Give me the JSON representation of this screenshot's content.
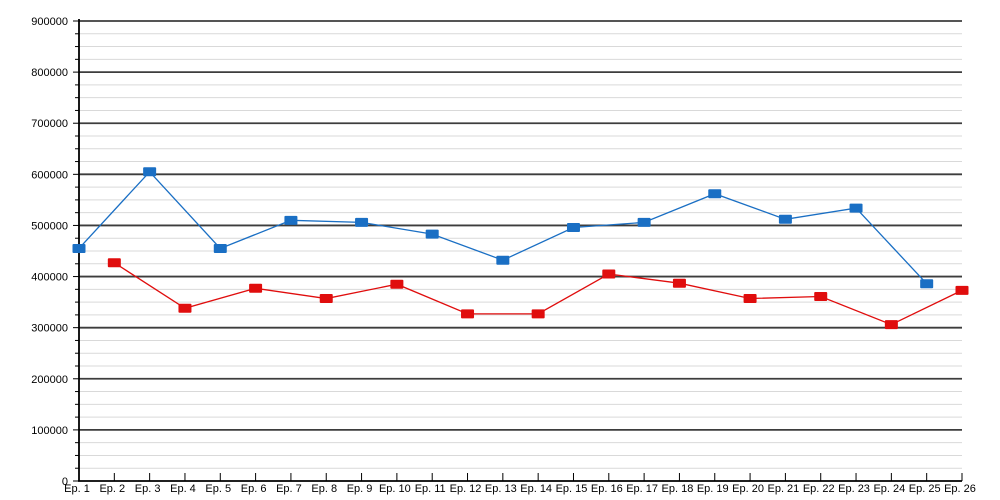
{
  "page": {
    "background_color": "#ffffff"
  },
  "chart_data": {
    "type": "line",
    "title": "",
    "legend": "none",
    "grid": {
      "major_color": "#3d3d3d",
      "minor_color": "#d9d9d9",
      "axis_color": "#000000",
      "major_on": true,
      "minor_on": true
    },
    "x_axis": {
      "label": "",
      "tick_labels": [
        "Ep. 1",
        "Ep. 2",
        "Ep. 3",
        "Ep. 4",
        "Ep. 5",
        "Ep. 6",
        "Ep. 7",
        "Ep. 8",
        "Ep. 9",
        "Ep. 10",
        "Ep. 11",
        "Ep. 12",
        "Ep. 13",
        "Ep. 14",
        "Ep. 15",
        "Ep. 16",
        "Ep. 17",
        "Ep. 18",
        "Ep. 19",
        "Ep. 20",
        "Ep. 21",
        "Ep. 22",
        "Ep. 23",
        "Ep. 24",
        "Ep. 25",
        "Ep. 26"
      ]
    },
    "y_axis": {
      "label": "",
      "min": 0,
      "max": 900000,
      "major_step": 100000,
      "minor_step": 25000,
      "tick_labels": [
        "0",
        "100000",
        "200000",
        "300000",
        "400000",
        "500000",
        "600000",
        "700000",
        "800000",
        "900000"
      ]
    },
    "categories": [
      "Ep. 1",
      "Ep. 2",
      "Ep. 3",
      "Ep. 4",
      "Ep. 5",
      "Ep. 6",
      "Ep. 7",
      "Ep. 8",
      "Ep. 9",
      "Ep. 10",
      "Ep. 11",
      "Ep. 12",
      "Ep. 13",
      "Ep. 14",
      "Ep. 15",
      "Ep. 16",
      "Ep. 17",
      "Ep. 18",
      "Ep. 19",
      "Ep. 20",
      "Ep. 21",
      "Ep. 22",
      "Ep. 23",
      "Ep. 24",
      "Ep. 25",
      "Ep. 26"
    ],
    "series": [
      {
        "id": "series-blue",
        "color": "#1a6fc4",
        "marker": "square",
        "values": [
          455000,
          null,
          605000,
          null,
          455000,
          null,
          510000,
          null,
          506000,
          null,
          483000,
          null,
          432000,
          null,
          496000,
          null,
          506000,
          null,
          562000,
          null,
          512000,
          null,
          534000,
          null,
          386000,
          null
        ]
      },
      {
        "id": "series-red",
        "color": "#e00d0d",
        "marker": "square",
        "values": [
          null,
          427000,
          null,
          338000,
          null,
          377000,
          null,
          357000,
          null,
          385000,
          null,
          327000,
          null,
          327000,
          null,
          405000,
          null,
          387000,
          null,
          357000,
          null,
          361000,
          null,
          306000,
          null,
          373000
        ]
      }
    ]
  }
}
